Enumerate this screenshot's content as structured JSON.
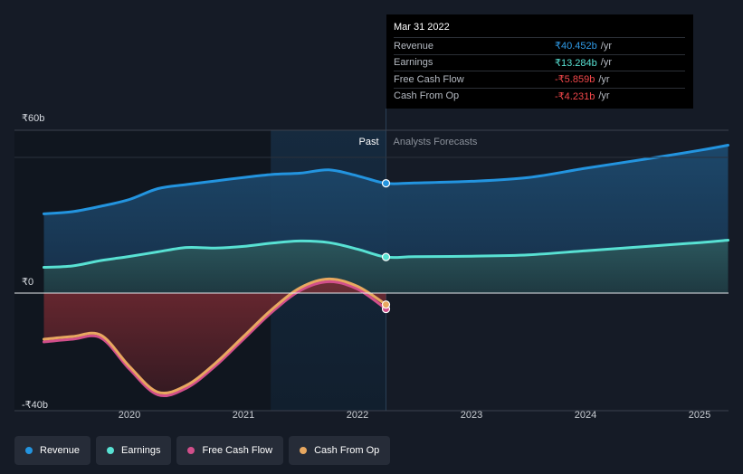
{
  "chart_data": {
    "type": "area",
    "y_axis_labels": [
      "₹60b",
      "₹0",
      "-₹40b"
    ],
    "x_ticks": [
      "2020",
      "2021",
      "2022",
      "2023",
      "2024",
      "2025"
    ],
    "ylim": [
      -40,
      60
    ],
    "past_label": "Past",
    "forecast_label": "Analysts Forecasts",
    "series": [
      {
        "name": "Revenue",
        "color": "#2394df",
        "points": [
          [
            2019.25,
            29.2
          ],
          [
            2019.5,
            30
          ],
          [
            2019.75,
            32
          ],
          [
            2020.0,
            34.5
          ],
          [
            2020.25,
            38.5
          ],
          [
            2020.5,
            40
          ],
          [
            2020.75,
            41.3
          ],
          [
            2021.0,
            42.6
          ],
          [
            2021.25,
            43.7
          ],
          [
            2021.5,
            44.2
          ],
          [
            2021.75,
            45.4
          ],
          [
            2022.0,
            43.2
          ],
          [
            2022.25,
            40.452
          ],
          [
            2022.5,
            40.6
          ],
          [
            2023.0,
            41.2
          ],
          [
            2023.5,
            42.6
          ],
          [
            2024.0,
            46
          ],
          [
            2024.5,
            49.2
          ],
          [
            2025.0,
            52.6
          ],
          [
            2025.25,
            54.5
          ]
        ]
      },
      {
        "name": "Earnings",
        "color": "#58e1d3",
        "points": [
          [
            2019.25,
            9.5
          ],
          [
            2019.5,
            10
          ],
          [
            2019.75,
            12
          ],
          [
            2020.0,
            13.5
          ],
          [
            2020.25,
            15.2
          ],
          [
            2020.5,
            16.8
          ],
          [
            2020.75,
            16.6
          ],
          [
            2021.0,
            17.2
          ],
          [
            2021.25,
            18.4
          ],
          [
            2021.5,
            19.2
          ],
          [
            2021.75,
            18.6
          ],
          [
            2022.0,
            16.2
          ],
          [
            2022.25,
            13.284
          ],
          [
            2022.5,
            13.4
          ],
          [
            2023.0,
            13.6
          ],
          [
            2023.5,
            14.1
          ],
          [
            2024.0,
            15.6
          ],
          [
            2024.5,
            17.1
          ],
          [
            2025.0,
            18.6
          ],
          [
            2025.25,
            19.5
          ]
        ]
      },
      {
        "name": "Free Cash Flow",
        "color": "#d24f8b",
        "points": [
          [
            2019.25,
            -18
          ],
          [
            2019.5,
            -17
          ],
          [
            2019.75,
            -16.5
          ],
          [
            2020.0,
            -28
          ],
          [
            2020.25,
            -37.5
          ],
          [
            2020.5,
            -35
          ],
          [
            2020.75,
            -27
          ],
          [
            2021.0,
            -17
          ],
          [
            2021.25,
            -7
          ],
          [
            2021.5,
            1
          ],
          [
            2021.75,
            4.2
          ],
          [
            2022.0,
            1.5
          ],
          [
            2022.25,
            -5.859
          ]
        ]
      },
      {
        "name": "Cash From Op",
        "color": "#e8a860",
        "points": [
          [
            2019.25,
            -17
          ],
          [
            2019.5,
            -16
          ],
          [
            2019.75,
            -15.5
          ],
          [
            2020.0,
            -27
          ],
          [
            2020.25,
            -36.5
          ],
          [
            2020.5,
            -34
          ],
          [
            2020.75,
            -26
          ],
          [
            2021.0,
            -16
          ],
          [
            2021.25,
            -6
          ],
          [
            2021.5,
            2
          ],
          [
            2021.75,
            5.2
          ],
          [
            2022.0,
            2.5
          ],
          [
            2022.25,
            -4.231
          ]
        ]
      }
    ]
  },
  "tooltip": {
    "date": "Mar 31 2022",
    "rows": [
      {
        "label": "Revenue",
        "value": "₹40.452b",
        "unit": "/yr",
        "color": "#2f9ae6"
      },
      {
        "label": "Earnings",
        "value": "₹13.284b",
        "unit": "/yr",
        "color": "#58e1d3"
      },
      {
        "label": "Free Cash Flow",
        "value": "-₹5.859b",
        "unit": "/yr",
        "color": "#f2474a"
      },
      {
        "label": "Cash From Op",
        "value": "-₹4.231b",
        "unit": "/yr",
        "color": "#f2474a"
      }
    ]
  },
  "legend": [
    {
      "label": "Revenue",
      "color": "#2394df"
    },
    {
      "label": "Earnings",
      "color": "#58e1d3"
    },
    {
      "label": "Free Cash Flow",
      "color": "#d24f8b"
    },
    {
      "label": "Cash From Op",
      "color": "#e8a860"
    }
  ]
}
